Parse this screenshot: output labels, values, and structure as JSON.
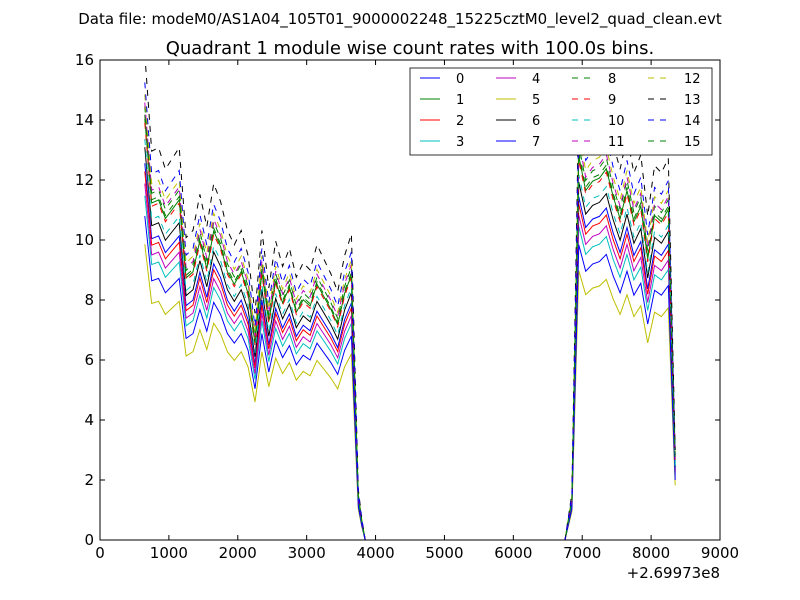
{
  "suptitle": "Data file: modeM0/AS1A04_105T01_9000002248_15225cztM0_level2_quad_clean.evt",
  "chart_data": {
    "type": "line",
    "title": "Quadrant 1 module wise count rates with 100.0s bins.",
    "xlabel": "",
    "ylabel": "",
    "xlim": [
      0,
      9000
    ],
    "ylim": [
      0,
      16
    ],
    "x_offset_label": "+2.69973e8",
    "x_ticks": [
      0,
      1000,
      2000,
      3000,
      4000,
      5000,
      6000,
      7000,
      8000,
      9000
    ],
    "y_ticks": [
      0,
      2,
      4,
      6,
      8,
      10,
      12,
      14,
      16
    ],
    "x_tick_labels": [
      "0",
      "1000",
      "2000",
      "3000",
      "4000",
      "5000",
      "6000",
      "7000",
      "8000",
      "9000"
    ],
    "y_tick_labels": [
      "0",
      "2",
      "4",
      "6",
      "8",
      "10",
      "12",
      "14",
      "16"
    ],
    "legend_position": "top-right",
    "x": [
      650,
      750,
      850,
      950,
      1050,
      1150,
      1250,
      1350,
      1450,
      1550,
      1650,
      1750,
      1850,
      1950,
      2050,
      2150,
      2250,
      2350,
      2450,
      2550,
      2650,
      2750,
      2850,
      2950,
      3050,
      3150,
      3250,
      3350,
      3450,
      3550,
      3650,
      3750,
      3800,
      3850,
      3950,
      4000,
      5000,
      6000,
      6750,
      6850,
      6950,
      7050,
      7150,
      7250,
      7350,
      7450,
      7550,
      7650,
      7750,
      7850,
      7950,
      8050,
      8150,
      8250,
      8350
    ],
    "base_profile": [
      13.5,
      10.8,
      10.9,
      10.3,
      10.6,
      10.9,
      8.4,
      8.6,
      9.6,
      8.7,
      9.9,
      9.4,
      8.6,
      8.2,
      8.6,
      7.9,
      6.3,
      8.6,
      7.0,
      8.3,
      7.6,
      8.1,
      7.3,
      7.7,
      7.5,
      8.2,
      7.8,
      7.4,
      6.9,
      7.9,
      8.5,
      1.4,
      0.6,
      0.0,
      0.0,
      0.0,
      0.0,
      0.0,
      0.0,
      1.3,
      12.3,
      11.2,
      11.5,
      11.6,
      11.9,
      11.0,
      10.3,
      11.2,
      10.2,
      10.7,
      9.0,
      10.4,
      10.2,
      10.6,
      2.5
    ],
    "series": [
      {
        "name": "0",
        "color": "#0000ff",
        "dash": "solid",
        "scale": 0.93,
        "offset": 0
      },
      {
        "name": "1",
        "color": "#008000",
        "dash": "solid",
        "scale": 1.04,
        "offset": 0
      },
      {
        "name": "2",
        "color": "#ff0000",
        "dash": "solid",
        "scale": 0.91,
        "offset": 0
      },
      {
        "name": "3",
        "color": "#00bfbf",
        "dash": "solid",
        "scale": 0.85,
        "offset": 0
      },
      {
        "name": "4",
        "color": "#bf00bf",
        "dash": "solid",
        "scale": 0.88,
        "offset": 0
      },
      {
        "name": "5",
        "color": "#bfbf00",
        "dash": "solid",
        "scale": 0.73,
        "offset": 0
      },
      {
        "name": "6",
        "color": "#000000",
        "dash": "solid",
        "scale": 0.97,
        "offset": 0
      },
      {
        "name": "7",
        "color": "#0000ff",
        "dash": "solid",
        "scale": 0.8,
        "offset": 0
      },
      {
        "name": "8",
        "color": "#008000",
        "dash": "dashed",
        "scale": 1.07,
        "offset": 0
      },
      {
        "name": "9",
        "color": "#ff0000",
        "dash": "dashed",
        "scale": 1.03,
        "offset": 0
      },
      {
        "name": "10",
        "color": "#00bfbf",
        "dash": "dashed",
        "scale": 0.99,
        "offset": 0
      },
      {
        "name": "11",
        "color": "#bf00bf",
        "dash": "dashed",
        "scale": 1.08,
        "offset": 0
      },
      {
        "name": "12",
        "color": "#bfbf00",
        "dash": "dashed",
        "scale": 1.1,
        "offset": 0
      },
      {
        "name": "13",
        "color": "#000000",
        "dash": "dashed",
        "scale": 1.2,
        "offset": 0
      },
      {
        "name": "14",
        "color": "#0000ff",
        "dash": "dashed",
        "scale": 1.13,
        "offset": 0
      },
      {
        "name": "15",
        "color": "#008000",
        "dash": "dashed",
        "scale": 1.05,
        "offset": 0
      }
    ]
  }
}
